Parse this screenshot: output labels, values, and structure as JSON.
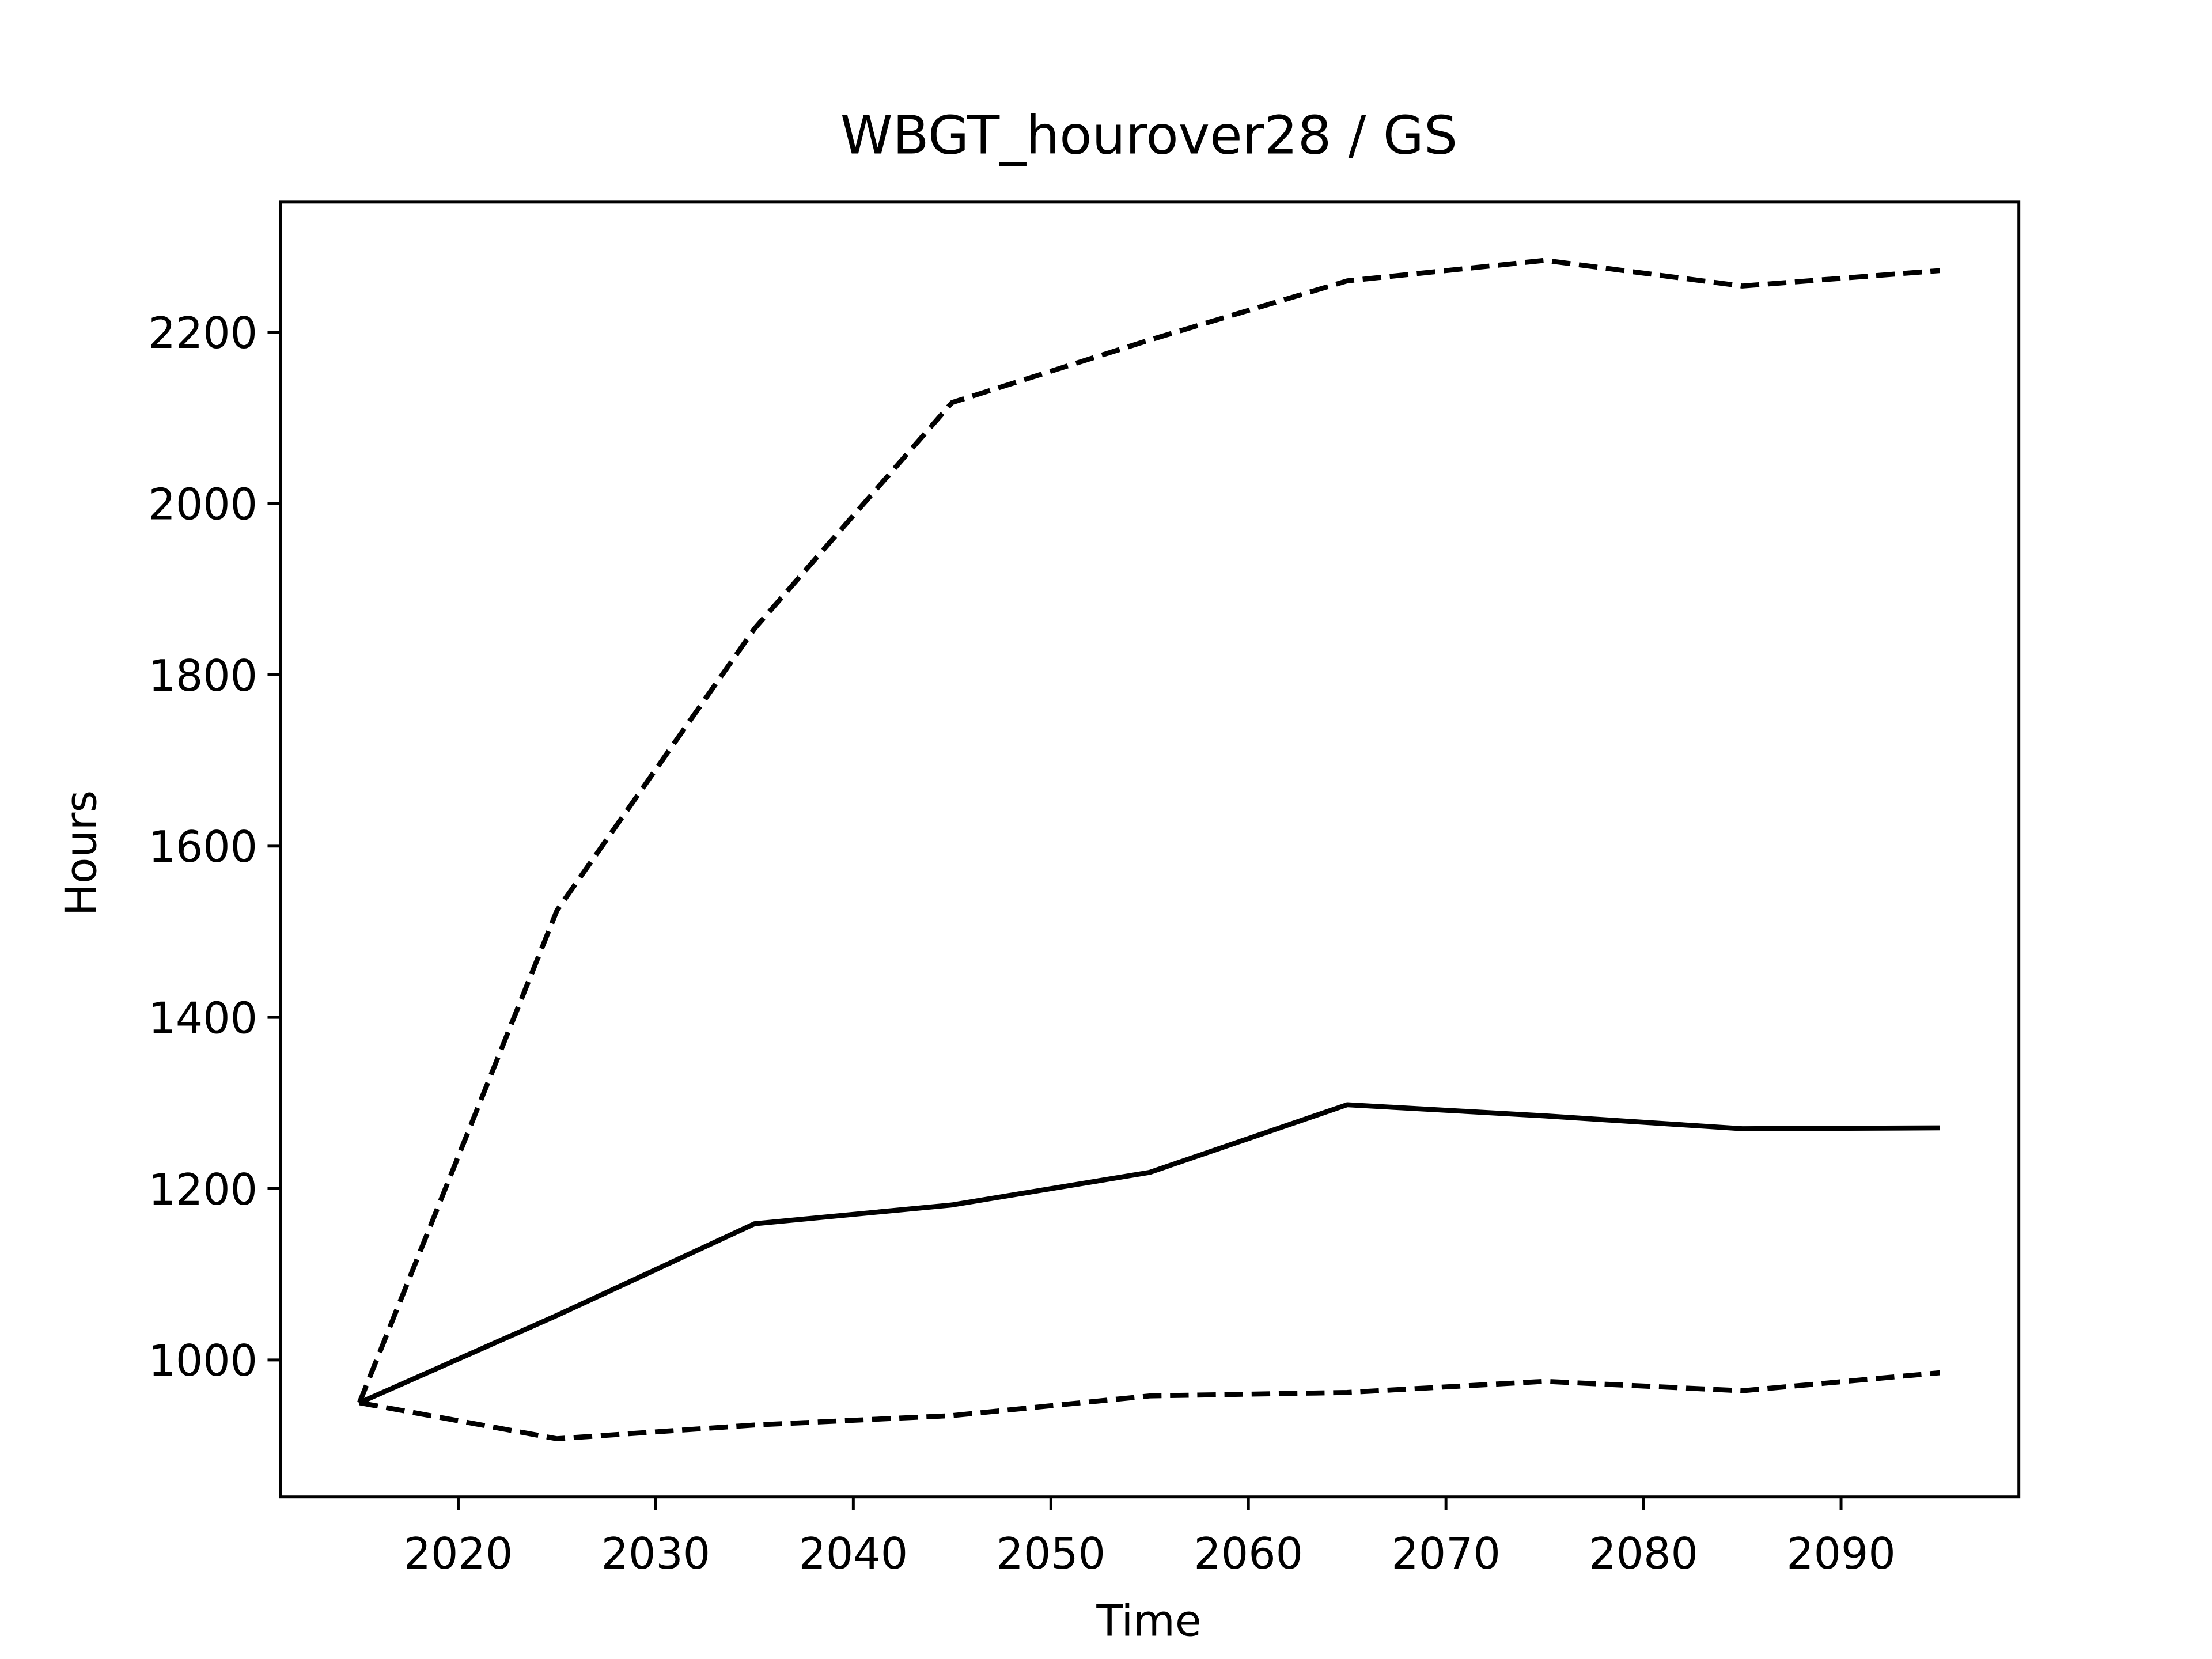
{
  "chart_data": {
    "type": "line",
    "title": "WBGT_hourover28 / GS",
    "x_label": "Time",
    "y_label": "Hours",
    "x": [
      2015,
      2025,
      2035,
      2045,
      2055,
      2065,
      2075,
      2085,
      2095
    ],
    "series": [
      {
        "color": "#000000",
        "linestyle": "solid",
        "values": [
          950,
          1052,
          1159,
          1181,
          1219,
          1298,
          1285,
          1270,
          1271
        ]
      },
      {
        "color": "#000000",
        "linestyle": "dashed",
        "values": [
          950,
          1525,
          1854,
          2118,
          2191,
          2260,
          2284,
          2254,
          2272
        ]
      },
      {
        "color": "#000000",
        "linestyle": "dashed",
        "values": [
          950,
          908,
          924,
          935,
          958,
          962,
          975,
          964,
          985
        ]
      }
    ],
    "xlim": [
      2011,
      2099
    ],
    "ylim": [
      840,
      2352
    ],
    "xticks": [
      2020,
      2030,
      2040,
      2050,
      2060,
      2070,
      2080,
      2090
    ],
    "yticks": [
      1000,
      1200,
      1400,
      1600,
      1800,
      2000,
      2200
    ],
    "grid": false
  }
}
